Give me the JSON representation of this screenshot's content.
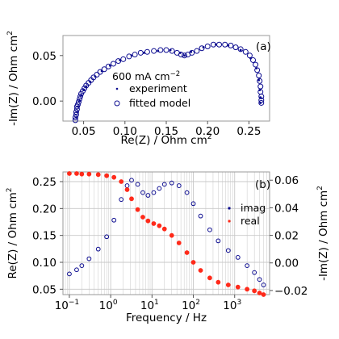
{
  "colors": {
    "navy": "#0b0b8f",
    "red": "#ff2a1a",
    "grid": "#c8c8c8",
    "frame": "#9a9a9a"
  },
  "chart_data": [
    {
      "panel": "(a)",
      "type": "scatter",
      "xlabel": "Re(Z) / Ohm cm",
      "xlabel_sup": "2",
      "ylabel": "-Im(Z) / Ohm cm",
      "ylabel_sup": "2",
      "xlim": [
        0.025,
        0.275
      ],
      "ylim": [
        -0.022,
        0.072
      ],
      "xticks": [
        0.05,
        0.1,
        0.15,
        0.2,
        0.25
      ],
      "xtick_labels": [
        "0.05",
        "0.10",
        "0.15",
        "0.20",
        "0.25"
      ],
      "yticks": [
        0.0,
        0.05
      ],
      "ytick_labels": [
        "0.00",
        "0.05"
      ],
      "legend_title": "600 mA cm",
      "legend_title_sup": "−2",
      "legend_placement": "center",
      "series": [
        {
          "name": "experiment",
          "marker": "dot",
          "color": "#0b0b8f",
          "points": [
            [
              0.041,
              -0.018
            ],
            [
              0.042,
              -0.012
            ],
            [
              0.043,
              -0.006
            ],
            [
              0.045,
              0.0
            ],
            [
              0.047,
              0.006
            ],
            [
              0.05,
              0.012
            ],
            [
              0.053,
              0.016
            ],
            [
              0.058,
              0.021
            ],
            [
              0.064,
              0.027
            ],
            [
              0.072,
              0.033
            ],
            [
              0.082,
              0.039
            ],
            [
              0.094,
              0.045
            ],
            [
              0.108,
              0.05
            ],
            [
              0.123,
              0.053
            ],
            [
              0.14,
              0.055
            ],
            [
              0.155,
              0.056
            ],
            [
              0.167,
              0.053
            ],
            [
              0.172,
              0.05
            ],
            [
              0.18,
              0.054
            ],
            [
              0.195,
              0.059
            ],
            [
              0.21,
              0.062
            ],
            [
              0.225,
              0.061
            ],
            [
              0.24,
              0.056
            ],
            [
              0.252,
              0.047
            ],
            [
              0.259,
              0.036
            ],
            [
              0.262,
              0.023
            ],
            [
              0.263,
              0.012
            ],
            [
              0.264,
              0.004
            ],
            [
              0.264,
              -0.002
            ]
          ]
        },
        {
          "name": "fitted model",
          "marker": "open-circle",
          "color": "#0b0b8f",
          "points": [
            [
              0.04,
              -0.021
            ],
            [
              0.04,
              -0.018
            ],
            [
              0.041,
              -0.015
            ],
            [
              0.041,
              -0.012
            ],
            [
              0.042,
              -0.009
            ],
            [
              0.042,
              -0.006
            ],
            [
              0.043,
              -0.004
            ],
            [
              0.044,
              -0.001
            ],
            [
              0.045,
              0.002
            ],
            [
              0.046,
              0.005
            ],
            [
              0.047,
              0.008
            ],
            [
              0.049,
              0.011
            ],
            [
              0.051,
              0.014
            ],
            [
              0.053,
              0.017
            ],
            [
              0.056,
              0.02
            ],
            [
              0.059,
              0.023
            ],
            [
              0.062,
              0.026
            ],
            [
              0.066,
              0.029
            ],
            [
              0.07,
              0.032
            ],
            [
              0.075,
              0.035
            ],
            [
              0.08,
              0.038
            ],
            [
              0.086,
              0.041
            ],
            [
              0.092,
              0.044
            ],
            [
              0.098,
              0.046
            ],
            [
              0.105,
              0.049
            ],
            [
              0.112,
              0.051
            ],
            [
              0.119,
              0.053
            ],
            [
              0.127,
              0.054
            ],
            [
              0.135,
              0.055
            ],
            [
              0.143,
              0.056
            ],
            [
              0.15,
              0.056
            ],
            [
              0.157,
              0.055
            ],
            [
              0.163,
              0.053
            ],
            [
              0.168,
              0.051
            ],
            [
              0.172,
              0.05
            ],
            [
              0.176,
              0.051
            ],
            [
              0.181,
              0.053
            ],
            [
              0.187,
              0.055
            ],
            [
              0.193,
              0.058
            ],
            [
              0.2,
              0.06
            ],
            [
              0.207,
              0.062
            ],
            [
              0.214,
              0.062
            ],
            [
              0.221,
              0.062
            ],
            [
              0.228,
              0.061
            ],
            [
              0.234,
              0.059
            ],
            [
              0.24,
              0.057
            ],
            [
              0.246,
              0.054
            ],
            [
              0.251,
              0.05
            ],
            [
              0.255,
              0.045
            ],
            [
              0.258,
              0.04
            ],
            [
              0.26,
              0.034
            ],
            [
              0.262,
              0.028
            ],
            [
              0.263,
              0.022
            ],
            [
              0.264,
              0.016
            ],
            [
              0.264,
              0.01
            ],
            [
              0.265,
              0.005
            ],
            [
              0.265,
              0.001
            ],
            [
              0.265,
              -0.002
            ]
          ]
        }
      ]
    },
    {
      "panel": "(b)",
      "type": "scatter",
      "xlabel": "Frequency / Hz",
      "xscale": "log",
      "xlim": [
        0.07,
        7000
      ],
      "xticks": [
        0.1,
        1,
        10,
        100,
        1000
      ],
      "xtick_labels": [
        "10",
        "10",
        "10",
        "10",
        "10"
      ],
      "xtick_exponents": [
        "−1",
        "0",
        "1",
        "2",
        "3"
      ],
      "ylabel_left": "Re(Z) / Ohm cm",
      "ylabel_left_sup": "2",
      "ylim_left": [
        0.04,
        0.268
      ],
      "yticks_left": [
        0.05,
        0.1,
        0.15,
        0.2,
        0.25
      ],
      "ytick_labels_left": [
        "0.05",
        "0.10",
        "0.15",
        "0.20",
        "0.25"
      ],
      "ylabel_right": "-Im(Z) / Ohm cm",
      "ylabel_right_sup": "2",
      "ylim_right": [
        -0.023,
        0.066
      ],
      "yticks_right": [
        -0.02,
        0.0,
        0.02,
        0.04,
        0.06
      ],
      "ytick_labels_right": [
        "−0.02",
        "0.00",
        "0.02",
        "0.04",
        "0.06"
      ],
      "grid": true,
      "legend_placement": "right",
      "series": [
        {
          "name": "imag",
          "axis": "right",
          "color": "#0b0b8f",
          "points": [
            [
              0.1,
              -0.008
            ],
            [
              0.15,
              -0.005
            ],
            [
              0.2,
              -0.002
            ],
            [
              0.3,
              0.003
            ],
            [
              0.5,
              0.01
            ],
            [
              0.8,
              0.019
            ],
            [
              1.2,
              0.031
            ],
            [
              1.8,
              0.046
            ],
            [
              2.5,
              0.056
            ],
            [
              3.2,
              0.06
            ],
            [
              4.5,
              0.057
            ],
            [
              6,
              0.051
            ],
            [
              8,
              0.049
            ],
            [
              11,
              0.051
            ],
            [
              15,
              0.054
            ],
            [
              20,
              0.057
            ],
            [
              30,
              0.058
            ],
            [
              45,
              0.056
            ],
            [
              70,
              0.051
            ],
            [
              100,
              0.043
            ],
            [
              150,
              0.034
            ],
            [
              250,
              0.024
            ],
            [
              400,
              0.016
            ],
            [
              700,
              0.009
            ],
            [
              1200,
              0.004
            ],
            [
              2000,
              -0.002
            ],
            [
              3000,
              -0.007
            ],
            [
              4000,
              -0.012
            ],
            [
              5000,
              -0.016
            ]
          ]
        },
        {
          "name": "real",
          "axis": "left",
          "color": "#ff2a1a",
          "points": [
            [
              0.1,
              0.265
            ],
            [
              0.15,
              0.265
            ],
            [
              0.2,
              0.264
            ],
            [
              0.3,
              0.264
            ],
            [
              0.5,
              0.263
            ],
            [
              0.8,
              0.261
            ],
            [
              1.2,
              0.258
            ],
            [
              1.8,
              0.25
            ],
            [
              2.5,
              0.235
            ],
            [
              3.2,
              0.218
            ],
            [
              4.5,
              0.198
            ],
            [
              6,
              0.184
            ],
            [
              8,
              0.177
            ],
            [
              11,
              0.172
            ],
            [
              15,
              0.168
            ],
            [
              20,
              0.162
            ],
            [
              30,
              0.15
            ],
            [
              45,
              0.136
            ],
            [
              70,
              0.118
            ],
            [
              100,
              0.1
            ],
            [
              150,
              0.085
            ],
            [
              250,
              0.071
            ],
            [
              400,
              0.063
            ],
            [
              700,
              0.058
            ],
            [
              1200,
              0.054
            ],
            [
              2000,
              0.05
            ],
            [
              3000,
              0.047
            ],
            [
              4000,
              0.043
            ],
            [
              5000,
              0.04
            ]
          ]
        }
      ]
    }
  ]
}
